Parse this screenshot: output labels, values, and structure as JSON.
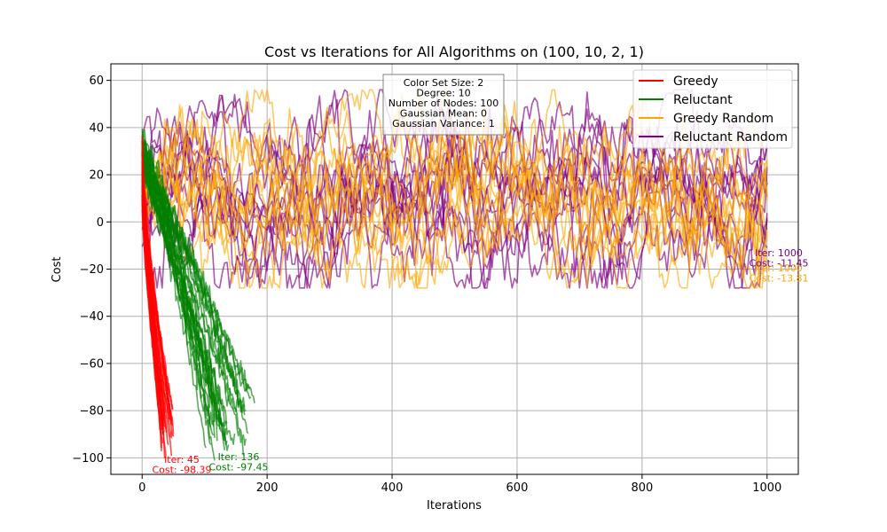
{
  "chart_data": {
    "type": "line",
    "title": "Cost vs Iterations for All Algorithms on (100, 10, 2, 1)",
    "xlabel": "Iterations",
    "ylabel": "Cost",
    "xlim": [
      -50,
      1050
    ],
    "ylim": [
      -107,
      67
    ],
    "xticks": [
      0,
      200,
      400,
      600,
      800,
      1000
    ],
    "yticks": [
      -100,
      -80,
      -60,
      -40,
      -20,
      0,
      20,
      40,
      60
    ],
    "grid": true,
    "legend_position": "upper right",
    "info_box": [
      "Color Set Size: 2",
      "Degree: 10",
      "Number of Nodes: 100",
      "Gaussian Mean: 0",
      "Gaussian Variance: 1"
    ],
    "series": [
      {
        "name": "Greedy",
        "color": "#ff0000",
        "approx_start": 30,
        "approx_final_x": [
          30,
          50
        ],
        "approx_final_y": [
          -100,
          -78
        ]
      },
      {
        "name": "Reluctant",
        "color": "#008000",
        "approx_start": 30,
        "approx_final_x": [
          100,
          185
        ],
        "approx_final_y": [
          -100,
          -75
        ]
      },
      {
        "name": "Greedy Random",
        "color": "#ffa500",
        "approx_band": [
          -28,
          57
        ],
        "x_max": 1000
      },
      {
        "name": "Reluctant Random",
        "color": "#800080",
        "approx_band": [
          -28,
          55
        ],
        "x_max": 1000
      }
    ],
    "annotations": [
      {
        "series": "Greedy",
        "text": "Iter: 45\nCost: -98.39",
        "color": "#ff0000",
        "x": 45,
        "y": -98.39
      },
      {
        "series": "Reluctant",
        "text": "Iter: 136\nCost: -97.45",
        "color": "#008000",
        "x": 136,
        "y": -97.45
      },
      {
        "series": "Greedy Random",
        "text": "Iter: 1000\nCost: -13.81",
        "color": "#ffa500",
        "x": 1000,
        "y": -13.81
      },
      {
        "series": "Reluctant Random",
        "text": "Iter: 1000\nCost: -11.45",
        "color": "#800080",
        "x": 1000,
        "y": -11.45
      }
    ]
  }
}
